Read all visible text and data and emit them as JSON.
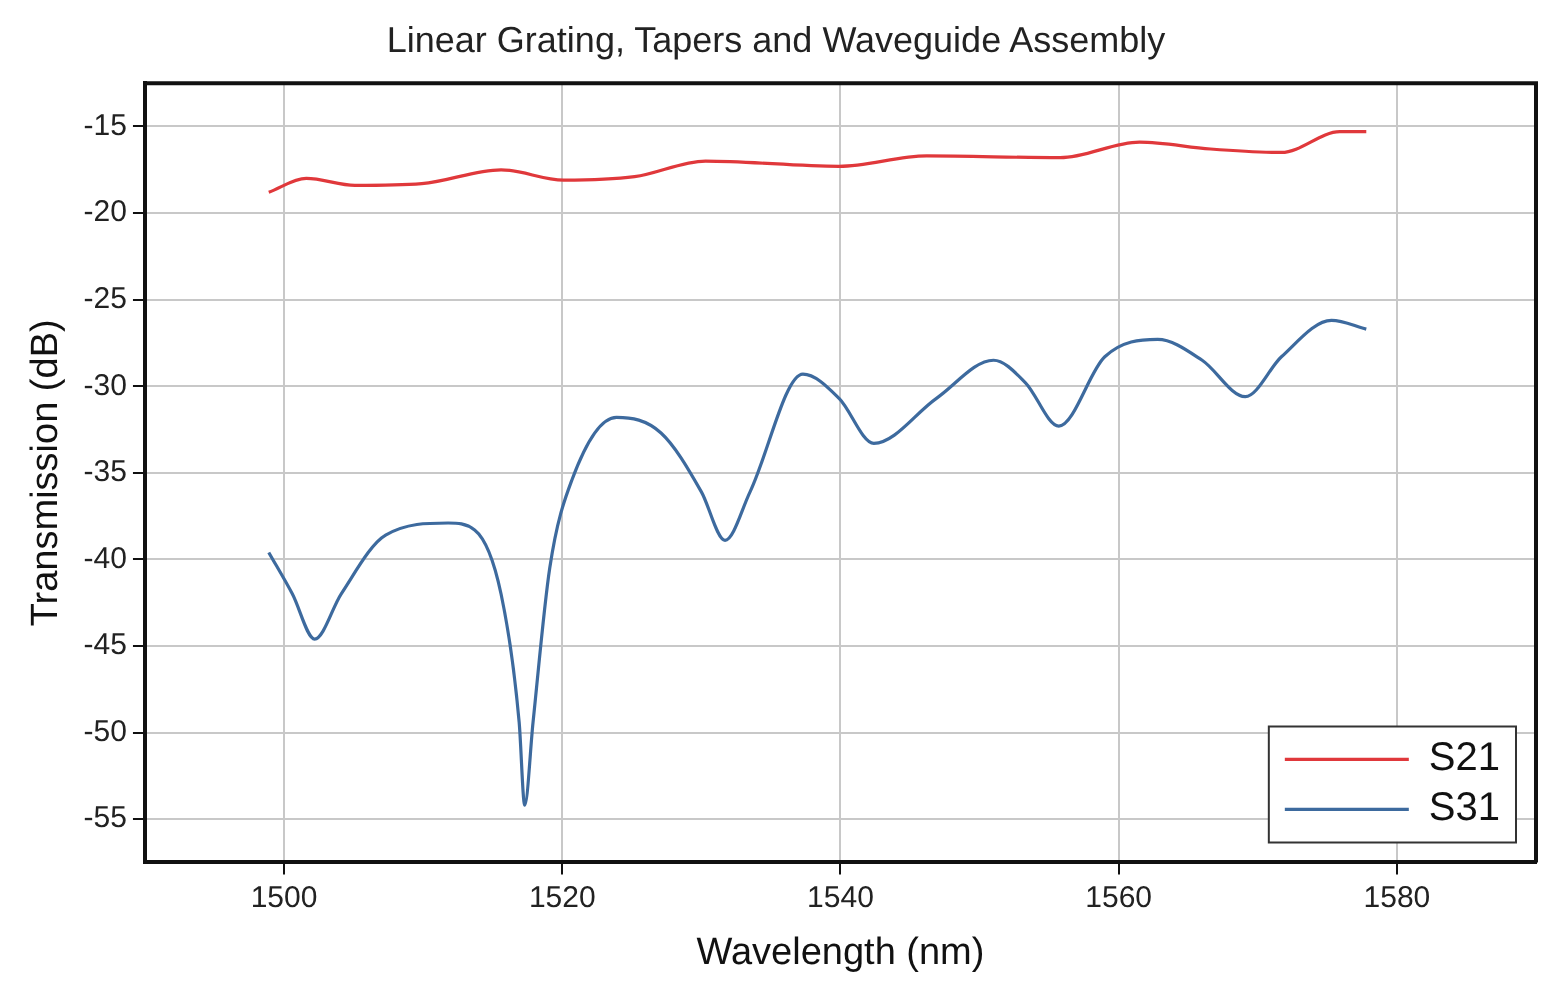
{
  "chart_data": {
    "type": "line",
    "title": "Linear Grating, Tapers and Waveguide Assembly",
    "xlabel": "Wavelength (nm)",
    "ylabel": "Transmission (dB)",
    "xlim": [
      1490,
      1590
    ],
    "xticks": [
      1500,
      1520,
      1540,
      1560,
      1580
    ],
    "ylim": [
      -57.5,
      -12.5
    ],
    "yticks": [
      -55,
      -50,
      -45,
      -40,
      -35,
      -30,
      -25,
      -20,
      -15
    ],
    "grid": true,
    "legend": "bottom right",
    "marker": "none",
    "line_style": "solid",
    "series": [
      {
        "name": "S21",
        "color": "#e0383b",
        "x": [
          1498.9,
          1501.6,
          1505.1,
          1509.9,
          1515.6,
          1520.1,
          1525.2,
          1530.3,
          1539.9,
          1546.2,
          1555.8,
          1561.5,
          1566.6,
          1571.7,
          1575.9,
          1577.8
        ],
        "values": [
          -18.8,
          -18.0,
          -18.4,
          -18.3,
          -17.5,
          -18.1,
          -17.9,
          -17.0,
          -17.3,
          -16.7,
          -16.8,
          -15.9,
          -16.3,
          -16.5,
          -15.3,
          -15.3
        ]
      },
      {
        "name": "S31",
        "color": "#3d6a9e",
        "x": [
          1498.9,
          1500.6,
          1502.2,
          1504.1,
          1507.3,
          1511.8,
          1513.7,
          1515.6,
          1516.9,
          1517.3,
          1517.9,
          1519.1,
          1520.7,
          1523.9,
          1527.1,
          1530.0,
          1531.7,
          1533.5,
          1537.3,
          1539.9,
          1542.4,
          1546.9,
          1551.0,
          1553.3,
          1555.7,
          1559.0,
          1562.8,
          1566.0,
          1569.1,
          1571.7,
          1575.3,
          1577.8
        ],
        "values": [
          -39.6,
          -42.0,
          -44.6,
          -42.0,
          -38.6,
          -37.9,
          -38.3,
          -42.0,
          -49.4,
          -54.2,
          -49.4,
          -40.5,
          -35.4,
          -31.8,
          -32.7,
          -36.1,
          -38.9,
          -36.1,
          -29.3,
          -30.7,
          -33.3,
          -30.7,
          -28.5,
          -29.8,
          -32.3,
          -28.3,
          -27.3,
          -28.5,
          -30.6,
          -28.3,
          -26.2,
          -26.7
        ]
      }
    ]
  }
}
